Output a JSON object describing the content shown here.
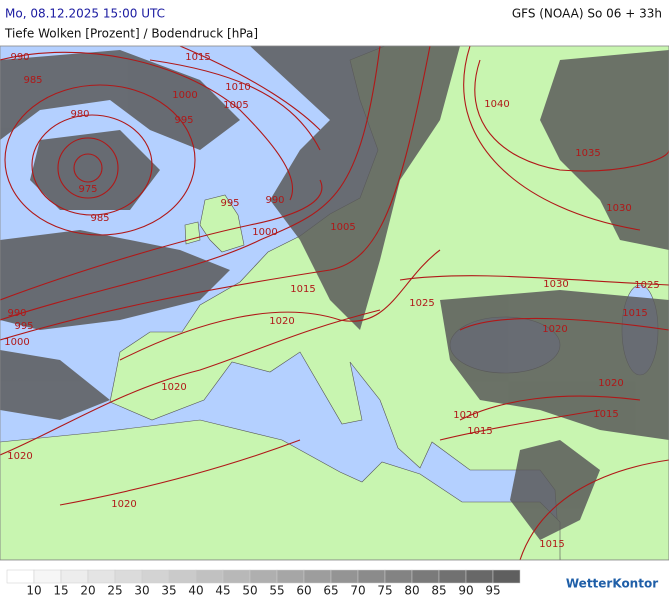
{
  "header": {
    "date": "Mo, 08.12.2025 15:00 UTC",
    "model": "GFS (NOAA) So 06 + 33h",
    "subtitle": "Tiefe Wolken [Prozent] / Bodendruck [hPa]"
  },
  "isobar_labels": [
    990,
    985,
    980,
    975,
    985,
    1015,
    1010,
    1000,
    1005,
    995,
    990,
    995,
    1000,
    1005,
    1040,
    1035,
    1030,
    1015,
    990,
    995,
    1000,
    1020,
    1025,
    1030,
    1025,
    1020,
    1015,
    1020,
    1020,
    1020,
    1015,
    1020,
    1015,
    1020,
    1015
  ],
  "legend": {
    "labels": [
      10,
      15,
      20,
      25,
      30,
      35,
      40,
      45,
      50,
      55,
      60,
      65,
      70,
      75,
      80,
      85,
      90,
      95
    ]
  },
  "logo": "WetterKontor"
}
